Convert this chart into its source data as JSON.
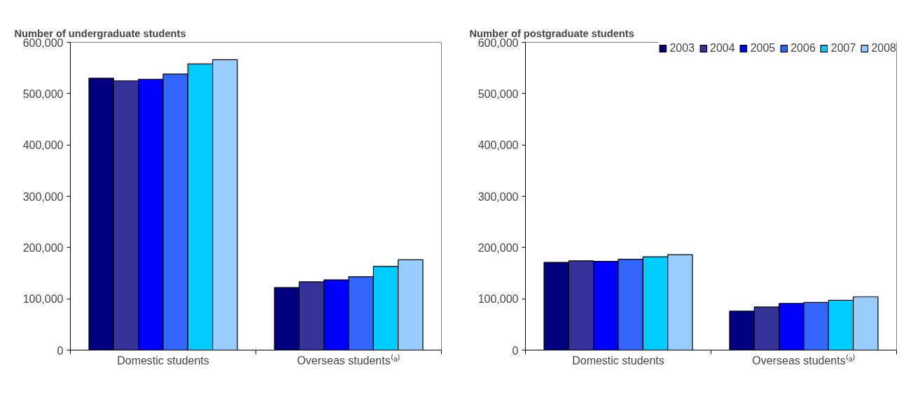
{
  "chart_data": [
    {
      "type": "bar",
      "title": "Number of undergraduate students",
      "categories": [
        "Domestic students",
        "Overseas students⁽ᵃ⁾"
      ],
      "series": [
        {
          "color": "#000080",
          "values": [
            530000,
            122000
          ]
        },
        {
          "color": "#333399",
          "values": [
            525000,
            133000
          ]
        },
        {
          "color": "#0000ff",
          "values": [
            528000,
            137000
          ]
        },
        {
          "color": "#3366ff",
          "values": [
            538000,
            143000
          ]
        },
        {
          "color": "#00ccff",
          "values": [
            558000,
            163000
          ]
        },
        {
          "color": "#99ccff",
          "values": [
            566000,
            176000
          ]
        }
      ],
      "ylim": [
        0,
        600000
      ],
      "yticks": [
        0,
        {
          "value": 100000,
          "label": "100,000"
        },
        {
          "value": 200000,
          "label": "200,000"
        },
        {
          "value": 300000,
          "label": "300,000"
        },
        {
          "value": 400000,
          "label": "400,000"
        },
        {
          "value": 500000,
          "label": "500,000"
        },
        {
          "value": 600000,
          "label": "600,000"
        }
      ],
      "grid": false,
      "legend": false
    },
    {
      "type": "bar",
      "title": "Number of postgraduate students",
      "categories": [
        "Domestic students",
        "Overseas students⁽ᵃ⁾"
      ],
      "series": [
        {
          "name": "2003",
          "color": "#000080",
          "values": [
            171000,
            76000
          ]
        },
        {
          "name": "2004",
          "color": "#333399",
          "values": [
            174000,
            84000
          ]
        },
        {
          "name": "2005",
          "color": "#0000ff",
          "values": [
            173000,
            91000
          ]
        },
        {
          "name": "2006",
          "color": "#3366ff",
          "values": [
            177000,
            93000
          ]
        },
        {
          "name": "2007",
          "color": "#00ccff",
          "values": [
            182000,
            97000
          ]
        },
        {
          "name": "2008",
          "color": "#99ccff",
          "values": [
            186000,
            104000
          ]
        }
      ],
      "ylim": [
        0,
        600000
      ],
      "yticks": [
        0,
        {
          "value": 100000,
          "label": "100,000"
        },
        {
          "value": 200000,
          "label": "200,000"
        },
        {
          "value": 300000,
          "label": "300,000"
        },
        {
          "value": 400000,
          "label": "400,000"
        },
        {
          "value": 500000,
          "label": "500,000"
        },
        {
          "value": 600000,
          "label": "600,000"
        }
      ],
      "grid": false,
      "legend": "top right"
    }
  ]
}
